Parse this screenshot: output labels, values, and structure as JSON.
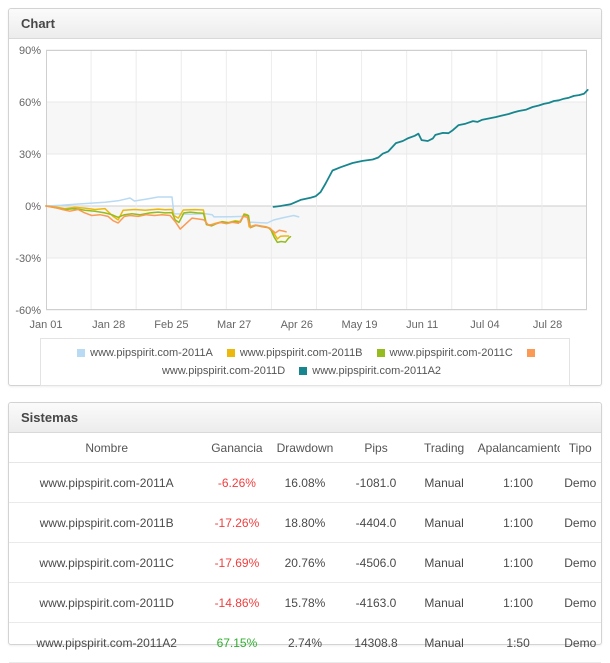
{
  "chart_panel": {
    "title": "Chart"
  },
  "systems_panel": {
    "title": "Sistemas"
  },
  "chart_data": {
    "type": "line",
    "title": "",
    "xlabel": "",
    "ylabel": "",
    "x_tick_labels": [
      "Jan 01",
      "Jan 28",
      "Feb 25",
      "Mar 27",
      "Apr 26",
      "May 19",
      "Jun 11",
      "Jul 04",
      "Jul 28"
    ],
    "y_tick_labels": [
      "90%",
      "60%",
      "30%",
      "0%",
      "-30%",
      "-60%"
    ],
    "ylim": [
      -60,
      90
    ],
    "y_unit": "percent gain",
    "x_axis_note": "x values are tick-index units: 0 = Jan 01 tick, 8 = Jul 28 tick",
    "grid": true,
    "shaded_bands_percent": [
      [
        30,
        60
      ],
      [
        -30,
        0
      ]
    ],
    "legend_position": "bottom",
    "series": [
      {
        "name": "www.pipspirit.com-2011A",
        "color": "#b9daf3",
        "final_gain_percent": -6.26,
        "points": [
          [
            0,
            0
          ],
          [
            0.25,
            0.4
          ],
          [
            0.46,
            1
          ],
          [
            0.7,
            1.6
          ],
          [
            0.94,
            2.2
          ],
          [
            1.15,
            3
          ],
          [
            1.34,
            4.6
          ],
          [
            1.41,
            2.9
          ],
          [
            1.6,
            4
          ],
          [
            1.79,
            5.2
          ],
          [
            2.01,
            5.2
          ],
          [
            2.04,
            -4.5
          ],
          [
            2.3,
            -4.8
          ],
          [
            2.54,
            -4.5
          ],
          [
            2.65,
            -5
          ],
          [
            2.68,
            -6.3
          ],
          [
            2.94,
            -6.2
          ],
          [
            3.16,
            -6
          ],
          [
            3.21,
            -5.2
          ],
          [
            3.24,
            -9.3
          ],
          [
            3.39,
            -9.6
          ],
          [
            3.53,
            -9.8
          ],
          [
            3.63,
            -8.1
          ],
          [
            3.79,
            -6.7
          ],
          [
            3.95,
            -5.5
          ],
          [
            4.03,
            -6.3
          ]
        ]
      },
      {
        "name": "www.pipspirit.com-2011B",
        "color": "#edb80e",
        "final_gain_percent": -17.26,
        "points": [
          [
            0,
            0
          ],
          [
            0.14,
            -0.5
          ],
          [
            0.3,
            -1.5
          ],
          [
            0.46,
            -0.8
          ],
          [
            0.62,
            -1.2
          ],
          [
            0.78,
            -2
          ],
          [
            0.94,
            -1.5
          ],
          [
            1.07,
            -6
          ],
          [
            1.15,
            -8
          ],
          [
            1.23,
            -2.5
          ],
          [
            1.42,
            -2
          ],
          [
            1.58,
            -2.5
          ],
          [
            1.79,
            -1.8
          ],
          [
            1.9,
            -2.2
          ],
          [
            2.01,
            -2
          ],
          [
            2.04,
            -5.5
          ],
          [
            2.11,
            -7
          ],
          [
            2.19,
            -2.3
          ],
          [
            2.38,
            -2.1
          ],
          [
            2.51,
            -2.3
          ],
          [
            2.56,
            -10.5
          ],
          [
            2.62,
            -11
          ],
          [
            2.7,
            -10
          ],
          [
            2.81,
            -9
          ],
          [
            2.91,
            -9.5
          ],
          [
            3.02,
            -8.5
          ],
          [
            3.1,
            -9
          ],
          [
            3.16,
            -4.5
          ],
          [
            3.21,
            -5
          ],
          [
            3.24,
            -12
          ],
          [
            3.34,
            -11
          ],
          [
            3.42,
            -11.5
          ],
          [
            3.51,
            -12
          ],
          [
            3.58,
            -13
          ],
          [
            3.64,
            -16
          ],
          [
            3.69,
            -19
          ],
          [
            3.74,
            -17.5
          ],
          [
            3.8,
            -17.3
          ],
          [
            3.87,
            -17.3
          ]
        ]
      },
      {
        "name": "www.pipspirit.com-2011C",
        "color": "#94bc1e",
        "final_gain_percent": -17.69,
        "points": [
          [
            0,
            0
          ],
          [
            0.14,
            -1
          ],
          [
            0.3,
            -2
          ],
          [
            0.46,
            -1.5
          ],
          [
            0.62,
            -2.5
          ],
          [
            0.78,
            -3
          ],
          [
            0.94,
            -4
          ],
          [
            1.05,
            -5
          ],
          [
            1.15,
            -6.5
          ],
          [
            1.25,
            -5
          ],
          [
            1.37,
            -4.5
          ],
          [
            1.5,
            -5
          ],
          [
            1.66,
            -4
          ],
          [
            1.79,
            -3.5
          ],
          [
            1.9,
            -4
          ],
          [
            2.01,
            -3.8
          ],
          [
            2.06,
            -8
          ],
          [
            2.12,
            -9.5
          ],
          [
            2.2,
            -4
          ],
          [
            2.3,
            -3.5
          ],
          [
            2.41,
            -4
          ],
          [
            2.51,
            -4.2
          ],
          [
            2.56,
            -10.8
          ],
          [
            2.64,
            -11.5
          ],
          [
            2.72,
            -10.2
          ],
          [
            2.81,
            -9.2
          ],
          [
            2.91,
            -9.8
          ],
          [
            3,
            -9
          ],
          [
            3.1,
            -9.3
          ],
          [
            3.16,
            -5
          ],
          [
            3.23,
            -5.5
          ],
          [
            3.26,
            -12.5
          ],
          [
            3.35,
            -11.2
          ],
          [
            3.45,
            -12
          ],
          [
            3.55,
            -12.5
          ],
          [
            3.59,
            -14
          ],
          [
            3.64,
            -18
          ],
          [
            3.69,
            -21
          ],
          [
            3.75,
            -20.5
          ],
          [
            3.82,
            -20.8
          ],
          [
            3.87,
            -18.5
          ],
          [
            3.9,
            -17.7
          ]
        ]
      },
      {
        "name": "www.pipspirit.com-2011D",
        "color": "#fa9a55",
        "final_gain_percent": -14.86,
        "points": [
          [
            0,
            0
          ],
          [
            0.14,
            -0.8
          ],
          [
            0.26,
            -2
          ],
          [
            0.38,
            -3
          ],
          [
            0.51,
            -2
          ],
          [
            0.62,
            -4
          ],
          [
            0.73,
            -5.5
          ],
          [
            0.86,
            -5
          ],
          [
            0.99,
            -6
          ],
          [
            1.07,
            -8.5
          ],
          [
            1.15,
            -9.8
          ],
          [
            1.25,
            -6
          ],
          [
            1.34,
            -5.5
          ],
          [
            1.47,
            -6
          ],
          [
            1.6,
            -5
          ],
          [
            1.73,
            -5.5
          ],
          [
            1.85,
            -5
          ],
          [
            1.98,
            -5.5
          ],
          [
            2.06,
            -9
          ],
          [
            2.14,
            -13.3
          ],
          [
            2.24,
            -10
          ],
          [
            2.33,
            -7
          ],
          [
            2.43,
            -7.5
          ],
          [
            2.52,
            -8
          ],
          [
            2.59,
            -11
          ],
          [
            2.68,
            -10.5
          ],
          [
            2.78,
            -9.5
          ],
          [
            2.88,
            -10.2
          ],
          [
            2.97,
            -9.4
          ],
          [
            3.07,
            -10
          ],
          [
            3.15,
            -6
          ],
          [
            3.21,
            -6.5
          ],
          [
            3.26,
            -12.2
          ],
          [
            3.35,
            -11
          ],
          [
            3.45,
            -11.8
          ],
          [
            3.53,
            -12.3
          ],
          [
            3.59,
            -13.5
          ],
          [
            3.66,
            -15.5
          ],
          [
            3.72,
            -14
          ],
          [
            3.79,
            -14.5
          ],
          [
            3.83,
            -14.9
          ]
        ]
      },
      {
        "name": "www.pipspirit.com-2011A2",
        "color": "#17868e",
        "final_gain_percent": 67.15,
        "points": [
          [
            3.63,
            -0.5
          ],
          [
            3.74,
            0
          ],
          [
            3.9,
            1
          ],
          [
            4.06,
            3.5
          ],
          [
            4.22,
            4.8
          ],
          [
            4.3,
            5.6
          ],
          [
            4.38,
            8
          ],
          [
            4.46,
            13
          ],
          [
            4.57,
            20.5
          ],
          [
            4.7,
            22.4
          ],
          [
            4.89,
            24.8
          ],
          [
            5.05,
            26
          ],
          [
            5.21,
            26.8
          ],
          [
            5.3,
            28
          ],
          [
            5.37,
            30.2
          ],
          [
            5.46,
            31.5
          ],
          [
            5.58,
            36.3
          ],
          [
            5.69,
            37.5
          ],
          [
            5.78,
            39.2
          ],
          [
            5.88,
            40.5
          ],
          [
            5.94,
            41.7
          ],
          [
            5.99,
            38
          ],
          [
            6.09,
            37.5
          ],
          [
            6.17,
            39
          ],
          [
            6.21,
            41
          ],
          [
            6.33,
            42.2
          ],
          [
            6.42,
            42
          ],
          [
            6.49,
            43.8
          ],
          [
            6.58,
            46.7
          ],
          [
            6.69,
            47.5
          ],
          [
            6.81,
            49
          ],
          [
            6.88,
            48.5
          ],
          [
            6.96,
            49.8
          ],
          [
            7.06,
            50.5
          ],
          [
            7.17,
            51.3
          ],
          [
            7.25,
            52
          ],
          [
            7.38,
            53.1
          ],
          [
            7.46,
            54
          ],
          [
            7.54,
            54.8
          ],
          [
            7.65,
            55.5
          ],
          [
            7.76,
            57.1
          ],
          [
            7.86,
            58
          ],
          [
            7.94,
            58.9
          ],
          [
            8.02,
            59.5
          ],
          [
            8.1,
            60.6
          ],
          [
            8.18,
            61
          ],
          [
            8.26,
            61.9
          ],
          [
            8.34,
            62.5
          ],
          [
            8.42,
            63.5
          ],
          [
            8.5,
            64
          ],
          [
            8.58,
            64.8
          ],
          [
            8.64,
            67
          ]
        ]
      }
    ]
  },
  "table": {
    "columns": [
      "Nombre",
      "Ganancia",
      "Drawdown",
      "Pips",
      "Trading",
      "Apalancamiento",
      "Tipo"
    ],
    "negative_color": "#ef3e3e",
    "positive_color": "#2eae2e",
    "rows": [
      {
        "nombre": "www.pipspirit.com-2011A",
        "ganancia": "-6.26%",
        "drawdown": "16.08%",
        "pips": "-1081.0",
        "trading": "Manual",
        "apalancamiento": "1:100",
        "tipo": "Demo"
      },
      {
        "nombre": "www.pipspirit.com-2011B",
        "ganancia": "-17.26%",
        "drawdown": "18.80%",
        "pips": "-4404.0",
        "trading": "Manual",
        "apalancamiento": "1:100",
        "tipo": "Demo"
      },
      {
        "nombre": "www.pipspirit.com-2011C",
        "ganancia": "-17.69%",
        "drawdown": "20.76%",
        "pips": "-4506.0",
        "trading": "Manual",
        "apalancamiento": "1:100",
        "tipo": "Demo"
      },
      {
        "nombre": "www.pipspirit.com-2011D",
        "ganancia": "-14.86%",
        "drawdown": "15.78%",
        "pips": "-4163.0",
        "trading": "Manual",
        "apalancamiento": "1:100",
        "tipo": "Demo"
      },
      {
        "nombre": "www.pipspirit.com-2011A2",
        "ganancia": "67.15%",
        "drawdown": "2.74%",
        "pips": "14308.8",
        "trading": "Manual",
        "apalancamiento": "1:50",
        "tipo": "Demo"
      }
    ]
  }
}
